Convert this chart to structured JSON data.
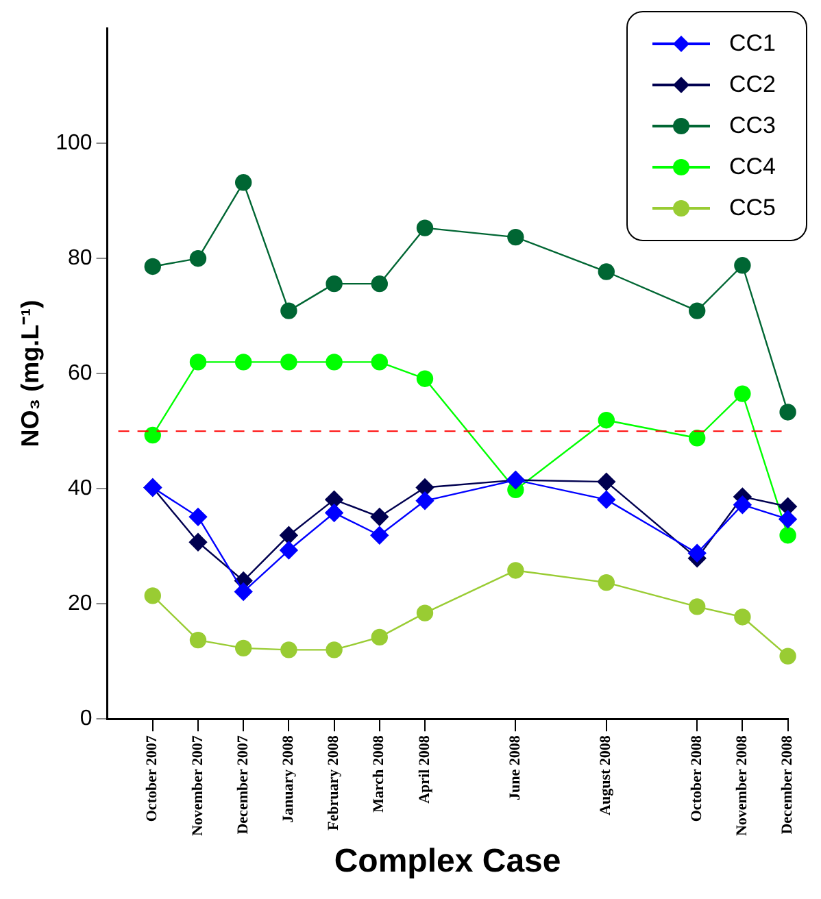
{
  "chart_data": {
    "type": "line",
    "xlabel": "Complex Case",
    "ylabel": "NO₃ (mg.L⁻¹)",
    "x": [
      "2007-10",
      "2007-11",
      "2007-12",
      "2008-01",
      "2008-02",
      "2008-03",
      "2008-04",
      "2008-06",
      "2008-08",
      "2008-10",
      "2008-11",
      "2008-12"
    ],
    "xlim": [
      "2007-09",
      "2008-12"
    ],
    "xticks": [
      {
        "value": "2007-10",
        "label": "October 2007"
      },
      {
        "value": "2007-11",
        "label": "November 2007"
      },
      {
        "value": "2007-12",
        "label": "December 2007"
      },
      {
        "value": "2008-01",
        "label": "January 2008"
      },
      {
        "value": "2008-02",
        "label": "February 2008"
      },
      {
        "value": "2008-03",
        "label": "March 2008"
      },
      {
        "value": "2008-04",
        "label": "April 2008"
      },
      {
        "value": "2008-06",
        "label": "June 2008"
      },
      {
        "value": "2008-08",
        "label": "August 2008"
      },
      {
        "value": "2008-10",
        "label": "October 2008"
      },
      {
        "value": "2008-11",
        "label": "November 2008"
      },
      {
        "value": "2008-12",
        "label": "December 2008"
      }
    ],
    "ylim": [
      0,
      120
    ],
    "yticks": [
      0,
      20,
      40,
      60,
      80,
      100
    ],
    "grid": false,
    "legend": "top right",
    "series": [
      {
        "name": "CC1",
        "color": "#0000ff",
        "marker": "diamond",
        "values": [
          40.2,
          35.1,
          22.1,
          29.3,
          35.8,
          31.9,
          37.9,
          41.5,
          38.1,
          28.8,
          37.2,
          34.7
        ]
      },
      {
        "name": "CC2",
        "color": "#000050",
        "marker": "diamond",
        "values": [
          40.2,
          30.7,
          24,
          31.9,
          38.1,
          35.1,
          40.2,
          41.5,
          41.2,
          27.9,
          38.6,
          36.9
        ]
      },
      {
        "name": "CC3",
        "color": "#006633",
        "marker": "circle",
        "values": [
          78.6,
          80,
          93.2,
          70.9,
          75.6,
          75.6,
          85.3,
          83.7,
          77.7,
          70.9,
          78.8,
          53.3
        ]
      },
      {
        "name": "CC4",
        "color": "#00ff00",
        "marker": "circle",
        "values": [
          49.3,
          62,
          62,
          62,
          62,
          62,
          59.1,
          39.8,
          51.9,
          48.8,
          56.5,
          31.9
        ]
      },
      {
        "name": "CC5",
        "color": "#99cc33",
        "marker": "circle",
        "values": [
          21.4,
          13.7,
          12.3,
          12,
          12,
          14.2,
          18.4,
          25.8,
          23.7,
          19.5,
          17.7,
          10.9
        ]
      }
    ],
    "ref_lines": [
      {
        "axis": "y",
        "value": 50,
        "color": "#ff0000",
        "line_style": "dashed"
      }
    ]
  }
}
